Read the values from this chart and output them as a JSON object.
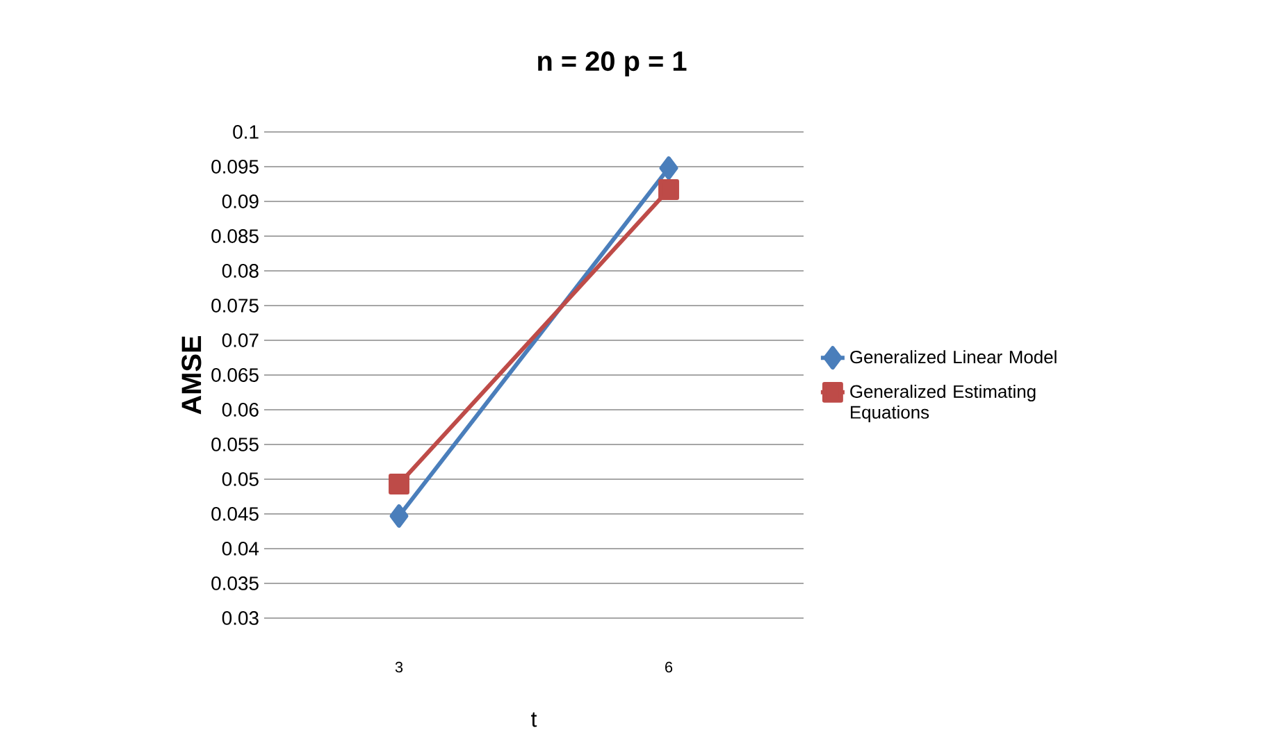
{
  "chart_data": {
    "type": "line",
    "title": "n = 20  p = 1",
    "xlabel": "t",
    "ylabel": "AMSE",
    "categories": [
      "3",
      "6"
    ],
    "series": [
      {
        "name": "Generalized Linear Model",
        "color": "#4a7ebb",
        "marker": "diamond",
        "values": [
          0.0447,
          0.0948
        ]
      },
      {
        "name": "Generalized Estimating Equations",
        "color": "#be4b48",
        "marker": "square",
        "values": [
          0.0493,
          0.0917
        ]
      }
    ],
    "ylim": [
      0.03,
      0.1
    ],
    "yticks": [
      0.03,
      0.035,
      0.04,
      0.045,
      0.05,
      0.055,
      0.06,
      0.065,
      0.07,
      0.075,
      0.08,
      0.085,
      0.09,
      0.095,
      0.1
    ],
    "grid": "y",
    "legend": "right"
  }
}
